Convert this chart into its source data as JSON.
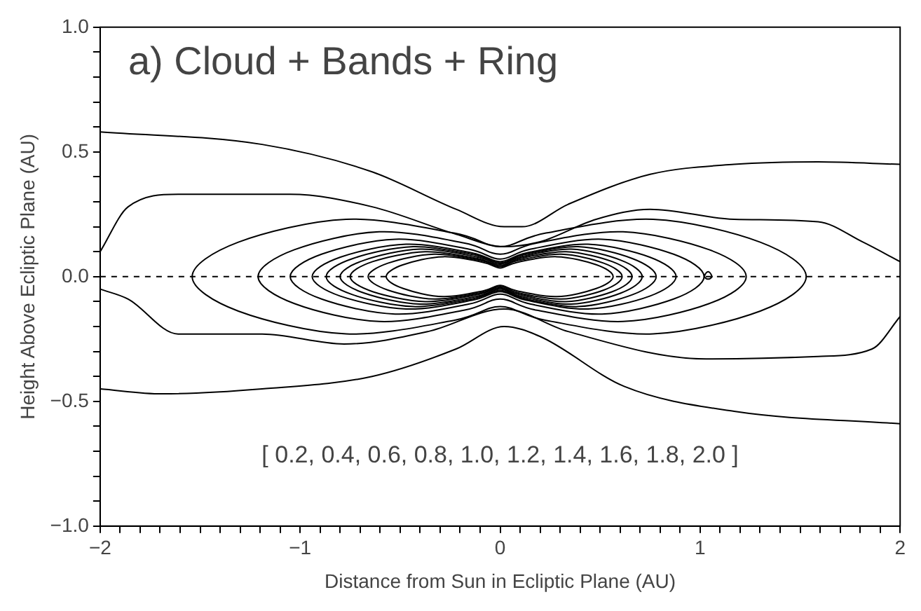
{
  "chart_data": {
    "type": "line",
    "title": "a) Cloud + Bands + Ring",
    "xlabel": "Distance from Sun in Ecliptic Plane (AU)",
    "ylabel": "Height Above Ecliptic Plane (AU)",
    "annotations": [
      "[ 0.2, 0.4, 0.6, 0.8, 1.0, 1.2, 1.4, 1.6, 1.8, 2.0 ]"
    ],
    "xlim": [
      -2,
      2
    ],
    "ylim": [
      -1,
      1
    ],
    "xticks": [
      {
        "value": -2,
        "label": "−2"
      },
      {
        "value": -1.9,
        "label": null
      },
      {
        "value": -1.8,
        "label": null
      },
      {
        "value": -1.7,
        "label": null
      },
      {
        "value": -1.6,
        "label": null
      },
      {
        "value": -1.5,
        "label": null
      },
      {
        "value": -1.4,
        "label": null
      },
      {
        "value": -1.3,
        "label": null
      },
      {
        "value": -1.2,
        "label": null
      },
      {
        "value": -1.1,
        "label": null
      },
      {
        "value": -1,
        "label": "−1"
      },
      {
        "value": -0.9,
        "label": null
      },
      {
        "value": -0.8,
        "label": null
      },
      {
        "value": -0.7,
        "label": null
      },
      {
        "value": -0.6,
        "label": null
      },
      {
        "value": -0.5,
        "label": null
      },
      {
        "value": -0.4,
        "label": null
      },
      {
        "value": -0.3,
        "label": null
      },
      {
        "value": -0.2,
        "label": null
      },
      {
        "value": -0.1,
        "label": null
      },
      0,
      {
        "value": 0.1,
        "label": null
      },
      {
        "value": 0.2,
        "label": null
      },
      {
        "value": 0.3,
        "label": null
      },
      {
        "value": 0.4,
        "label": null
      },
      {
        "value": 0.5,
        "label": null
      },
      {
        "value": 0.6,
        "label": null
      },
      {
        "value": 0.7,
        "label": null
      },
      {
        "value": 0.8,
        "label": null
      },
      {
        "value": 0.9,
        "label": null
      },
      1,
      {
        "value": 1.1,
        "label": null
      },
      {
        "value": 1.2,
        "label": null
      },
      {
        "value": 1.3,
        "label": null
      },
      {
        "value": 1.4,
        "label": null
      },
      {
        "value": 1.5,
        "label": null
      },
      {
        "value": 1.6,
        "label": null
      },
      {
        "value": 1.7,
        "label": null
      },
      {
        "value": 1.8,
        "label": null
      },
      {
        "value": 1.9,
        "label": null
      },
      2
    ],
    "yticks": [
      {
        "value": -1,
        "label": "−1.0"
      },
      {
        "value": -0.9,
        "label": null
      },
      {
        "value": -0.8,
        "label": null
      },
      {
        "value": -0.7,
        "label": null
      },
      {
        "value": -0.6,
        "label": null
      },
      {
        "value": -0.5,
        "label": "−0.5"
      },
      {
        "value": -0.4,
        "label": null
      },
      {
        "value": -0.3,
        "label": null
      },
      {
        "value": -0.2,
        "label": null
      },
      {
        "value": -0.1,
        "label": null
      },
      {
        "value": 0,
        "label": "0.0"
      },
      {
        "value": 0.1,
        "label": null
      },
      {
        "value": 0.2,
        "label": null
      },
      {
        "value": 0.3,
        "label": null
      },
      {
        "value": 0.4,
        "label": null
      },
      {
        "value": 0.5,
        "label": "0.5"
      },
      {
        "value": 0.6,
        "label": null
      },
      {
        "value": 0.7,
        "label": null
      },
      {
        "value": 0.8,
        "label": null
      },
      {
        "value": 0.9,
        "label": null
      },
      {
        "value": 1,
        "label": "1.0"
      }
    ],
    "ref_lines": [
      {
        "axis": "y",
        "value": 0,
        "line_style": "dashed",
        "color": "#000000"
      }
    ],
    "legend": false,
    "marker": "none",
    "line_style": "solid",
    "series": [
      {
        "type": "line",
        "color": "#000000",
        "x": [
          -2,
          -1.19,
          -0.64,
          -0.22,
          0.02,
          0.11,
          0.34,
          0.75,
          1.17,
          1.59,
          2
        ],
        "values": [
          0.58,
          0.53,
          0.42,
          0.27,
          0.2,
          0.2,
          0.29,
          0.41,
          0.45,
          0.46,
          0.45
        ]
      },
      {
        "type": "line",
        "color": "#000000",
        "x": [
          -2,
          -1.86,
          -1.61,
          -1.05,
          -0.64,
          -0.22,
          0.02,
          0.2,
          0.48,
          0.75,
          1.17,
          1.59,
          1.81,
          2
        ],
        "values": [
          0.1,
          0.28,
          0.33,
          0.33,
          0.28,
          0.17,
          0.12,
          0.14,
          0.23,
          0.27,
          0.23,
          0.22,
          0.14,
          0.06
        ]
      },
      {
        "type": "line",
        "color": "#000000",
        "x": [
          -2,
          -1.86,
          -1.61,
          -1.19,
          -0.78,
          -0.36,
          0.02,
          0.34,
          1.03,
          1.59,
          1.86,
          2
        ],
        "values": [
          -0.05,
          -0.09,
          -0.23,
          -0.23,
          -0.27,
          -0.22,
          -0.13,
          -0.22,
          -0.33,
          -0.32,
          -0.29,
          -0.16
        ]
      },
      {
        "type": "line",
        "color": "#000000",
        "x": [
          -2,
          -1.69,
          -1.19,
          -0.64,
          -0.22,
          0.02,
          0.2,
          0.62,
          1.17,
          2
        ],
        "values": [
          -0.45,
          -0.47,
          -0.45,
          -0.4,
          -0.29,
          -0.2,
          -0.24,
          -0.44,
          -0.54,
          -0.59
        ]
      }
    ]
  }
}
